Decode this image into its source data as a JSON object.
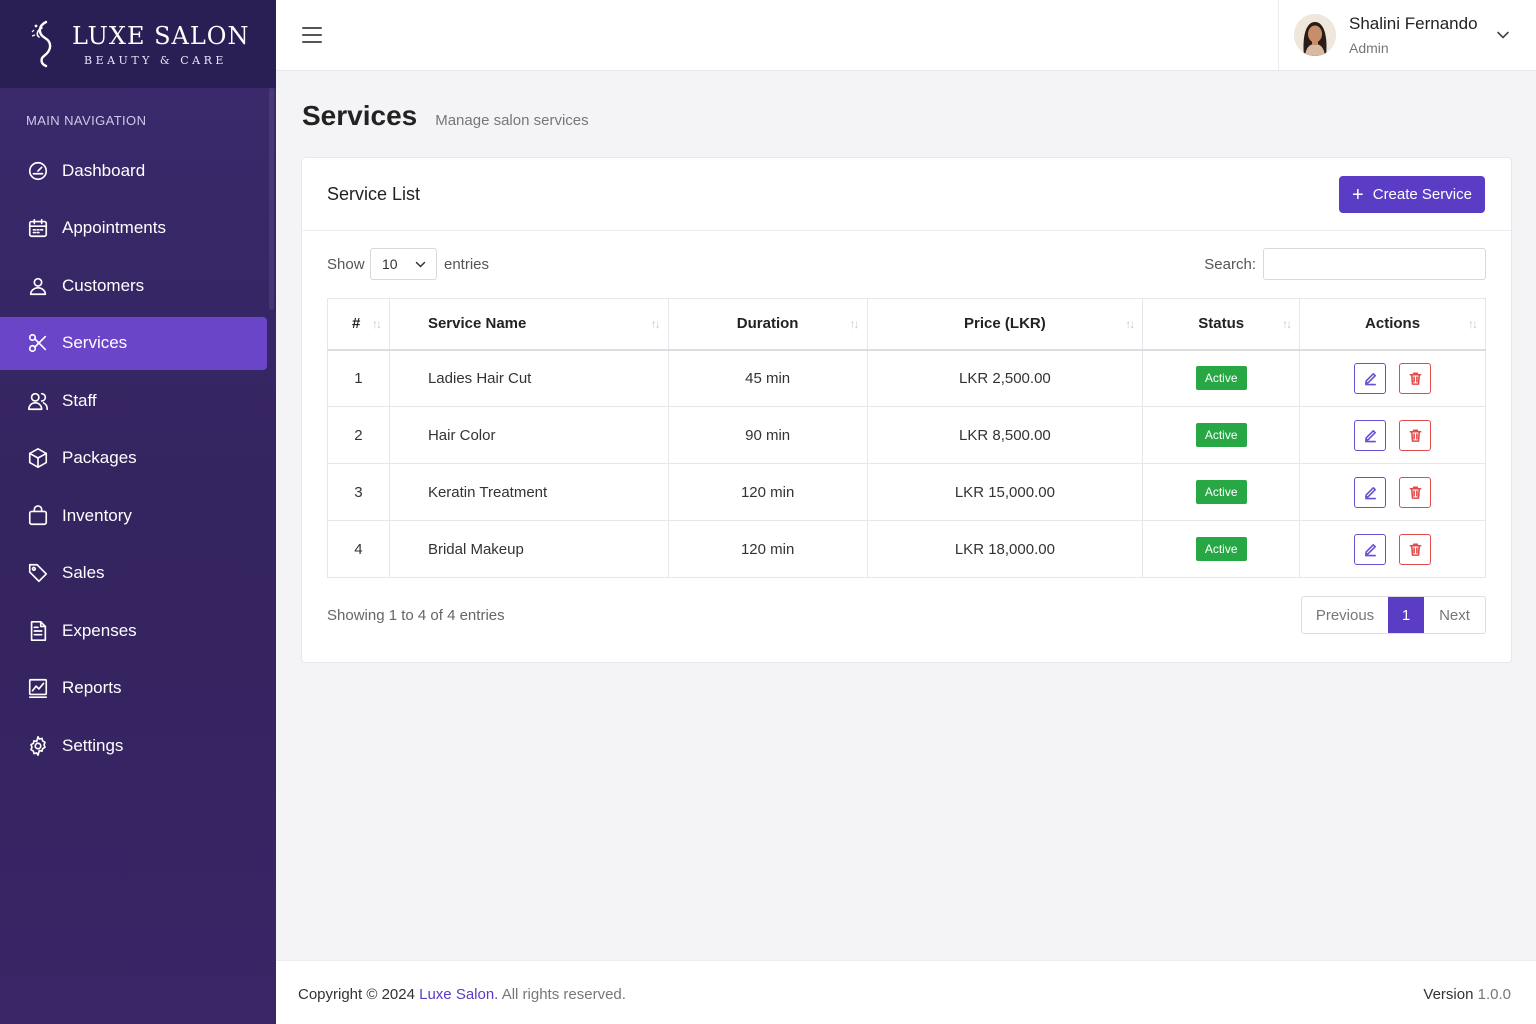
{
  "brand": {
    "name": "LUXE SALON",
    "tagline": "BEAUTY & CARE"
  },
  "sidebar": {
    "heading": "MAIN NAVIGATION",
    "items": [
      {
        "label": "Dashboard",
        "icon": "dashboard-icon"
      },
      {
        "label": "Appointments",
        "icon": "calendar-icon"
      },
      {
        "label": "Customers",
        "icon": "user-icon"
      },
      {
        "label": "Services",
        "icon": "scissors-icon",
        "active": true
      },
      {
        "label": "Staff",
        "icon": "users-icon"
      },
      {
        "label": "Packages",
        "icon": "box-icon"
      },
      {
        "label": "Inventory",
        "icon": "bag-icon"
      },
      {
        "label": "Sales",
        "icon": "tag-icon"
      },
      {
        "label": "Expenses",
        "icon": "file-text-icon"
      },
      {
        "label": "Reports",
        "icon": "chart-icon"
      },
      {
        "label": "Settings",
        "icon": "gear-icon"
      }
    ]
  },
  "topbar": {
    "user_name": "Shalini Fernando",
    "user_role": "Admin"
  },
  "page": {
    "title": "Services",
    "subtitle": "Manage salon services"
  },
  "card": {
    "title": "Service List",
    "create_label": "Create Service",
    "show_label": "Show",
    "entries_value": "10",
    "entries_label": "entries",
    "search_label": "Search:",
    "search_value": ""
  },
  "table": {
    "headers": [
      "#",
      "Service Name",
      "Duration",
      "Price (LKR)",
      "Status",
      "Actions"
    ],
    "rows": [
      {
        "num": "1",
        "name": "Ladies Hair Cut",
        "duration": "45 min",
        "price": "LKR 2,500.00",
        "status": "Active"
      },
      {
        "num": "2",
        "name": "Hair Color",
        "duration": "90 min",
        "price": "LKR 8,500.00",
        "status": "Active"
      },
      {
        "num": "3",
        "name": "Keratin Treatment",
        "duration": "120 min",
        "price": "LKR 15,000.00",
        "status": "Active"
      },
      {
        "num": "4",
        "name": "Bridal Makeup",
        "duration": "120 min",
        "price": "LKR 18,000.00",
        "status": "Active"
      }
    ]
  },
  "pagination": {
    "info": "Showing 1 to 4 of 4 entries",
    "previous": "Previous",
    "current": "1",
    "next": "Next"
  },
  "footer": {
    "copyright_prefix": "Copyright © 2024",
    "brand_link": "Luxe Salon.",
    "rights": "All rights reserved.",
    "version_label": "Version",
    "version_value": "1.0.0"
  },
  "colors": {
    "accent": "#5b3cc4",
    "sidebar": "#34245f",
    "active_nav": "#6a45c8",
    "success": "#28a745",
    "danger": "#e04b4b"
  }
}
